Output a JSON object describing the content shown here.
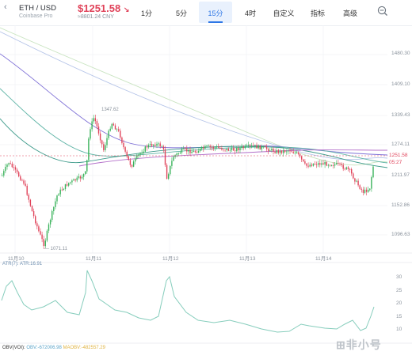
{
  "header": {
    "pair": "ETH / USD",
    "exchange": "Coinbase Pro",
    "price": "$1251.58",
    "change_arrow": "↘",
    "price_cny": "≈8801.24 CNY",
    "tabs": [
      "1分",
      "5分",
      "15分",
      "4时",
      "自定义",
      "指标",
      "高级"
    ],
    "active_tab": "15分"
  },
  "price_axis": [
    "1480.30",
    "1409.10",
    "1339.43",
    "1274.11",
    "1211.97",
    "1152.86",
    "1096.63"
  ],
  "current_price": {
    "price": "1251.58",
    "countdown": "05:27"
  },
  "time_axis": [
    "11月10",
    "11月11",
    "11月12",
    "11月13",
    "11月14"
  ],
  "annotations": {
    "high": "1347.62",
    "low": "1071.11"
  },
  "indicator": {
    "label": "ATR(7): ATR:16.91",
    "axis": [
      "30",
      "25",
      "20",
      "15",
      "10"
    ]
  },
  "obv": {
    "prefix": "OBV(VOI):",
    "obv": "OBV:-672006.98",
    "maobv": "MAOBV:-482557.29"
  },
  "watermark": "非小号",
  "colors": {
    "up": "#39b25a",
    "down": "#e0435a",
    "accent": "#2e77e6",
    "atr": "#86cdbc"
  }
}
